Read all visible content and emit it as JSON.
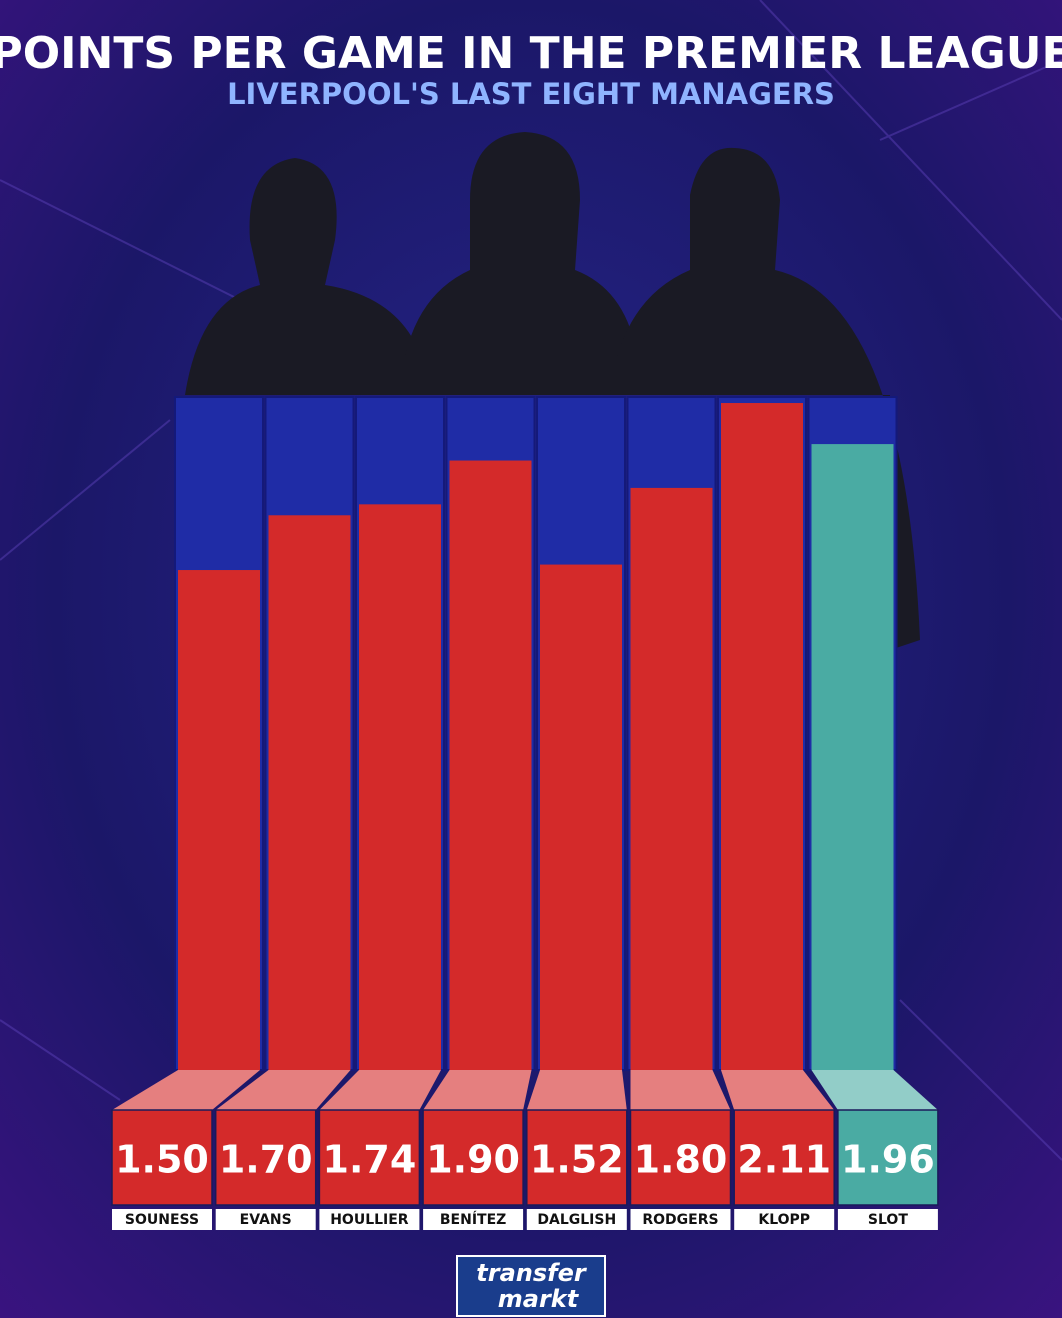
{
  "chart_data": {
    "type": "bar",
    "title": "POINTS PER GAME IN THE PREMIER LEAGUE",
    "subtitle": "LIVERPOOL'S LAST EIGHT MANAGERS",
    "categories": [
      "SOUNESS",
      "EVANS",
      "HOULLIER",
      "BENÍTEZ",
      "DALGLISH",
      "RODGERS",
      "KLOPP",
      "SLOT"
    ],
    "values": [
      1.5,
      1.7,
      1.74,
      1.9,
      1.52,
      1.8,
      2.11,
      1.96
    ],
    "value_labels": [
      "1.50",
      "1.70",
      "1.74",
      "1.90",
      "1.52",
      "1.80",
      "2.11",
      "1.96"
    ],
    "colors": [
      "#d42a2a",
      "#d42a2a",
      "#d42a2a",
      "#d42a2a",
      "#d42a2a",
      "#d42a2a",
      "#d42a2a",
      "#4aaba3"
    ],
    "ylim": [
      -0.326,
      2.132
    ],
    "logo": [
      "transfer",
      "markt"
    ]
  }
}
